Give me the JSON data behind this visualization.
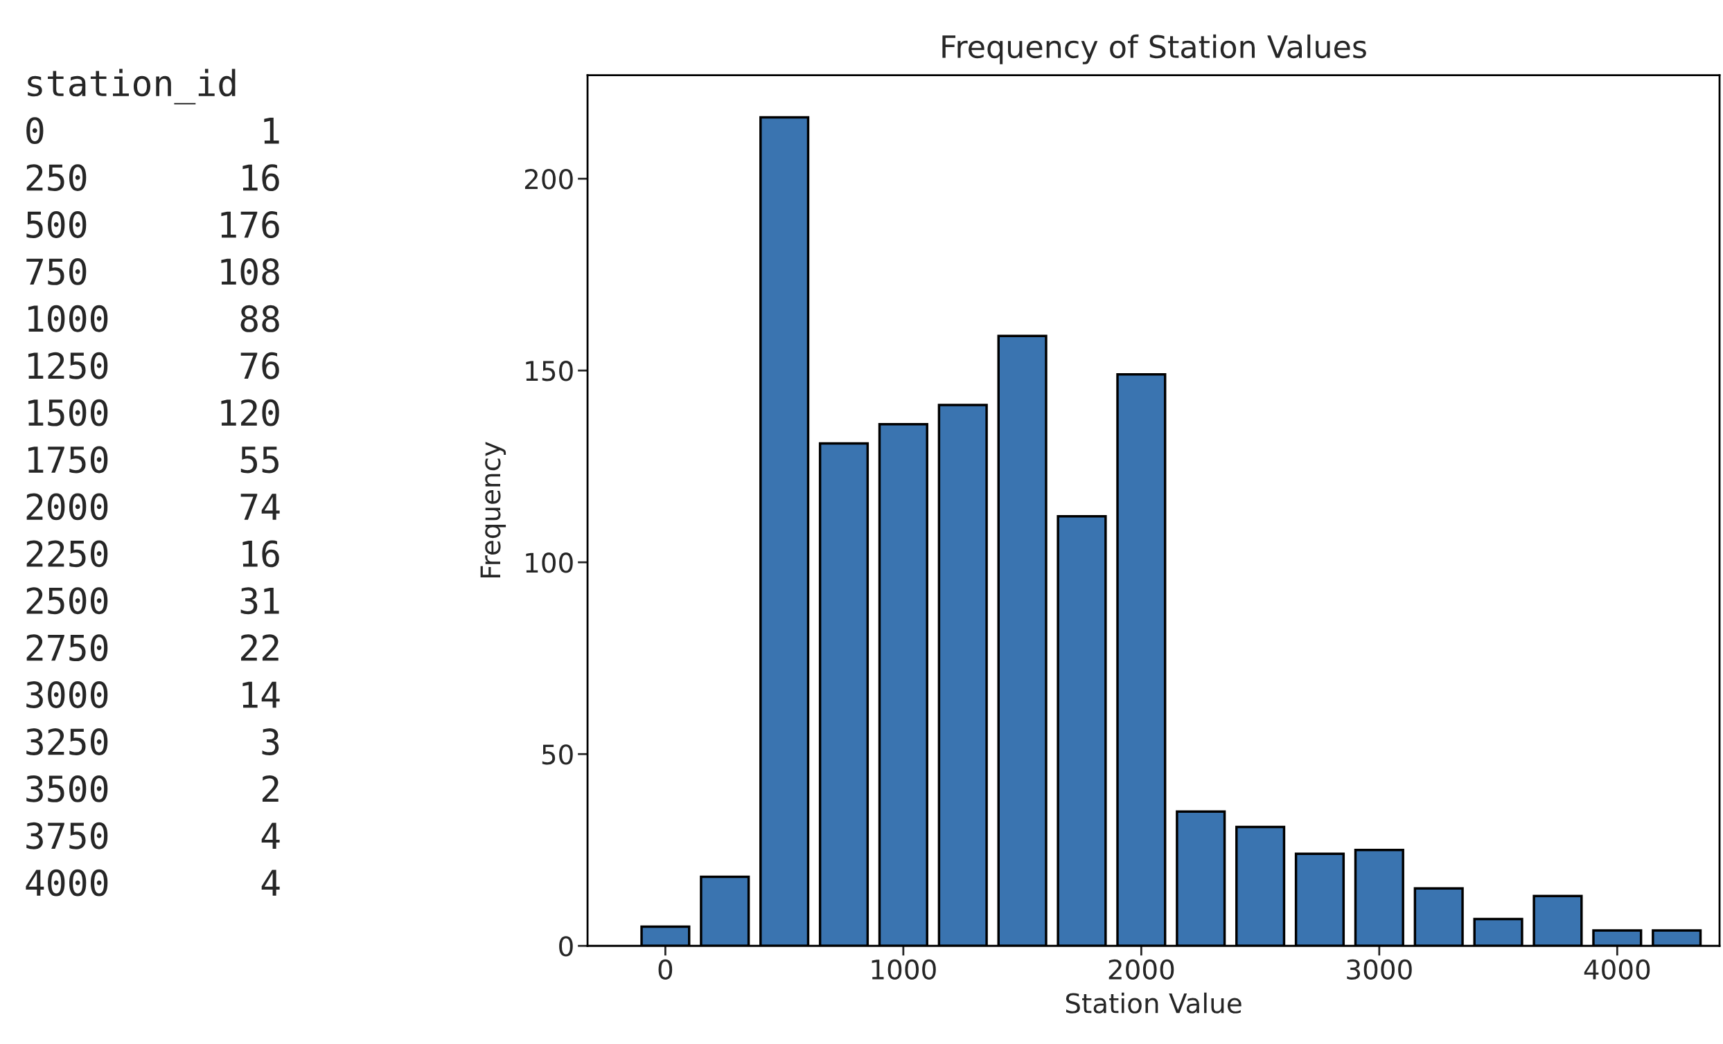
{
  "chart_data": {
    "type": "bar",
    "title": "Frequency of Station Values",
    "xlabel": "Station Value",
    "ylabel": "Frequency",
    "x": [
      0,
      250,
      500,
      750,
      1000,
      1250,
      1500,
      1750,
      2000,
      2250,
      2500,
      2750,
      3000,
      3250,
      3500,
      3750,
      4000,
      4250
    ],
    "values": [
      5,
      18,
      216,
      131,
      136,
      141,
      159,
      112,
      149,
      35,
      31,
      24,
      25,
      15,
      7,
      13,
      4,
      4
    ],
    "color": "#3a74b0",
    "xlim": [
      -327,
      4430
    ],
    "xticks": [
      0,
      1000,
      2000,
      3000,
      4000
    ],
    "ylim": [
      0,
      227
    ],
    "yticks": [
      0,
      50,
      100,
      150,
      200
    ],
    "grid": false,
    "annotations": [
      "station_id",
      "0          1",
      "250       16",
      "500      176",
      "750      108",
      "1000      88",
      "1250      76",
      "1500     120",
      "1750      55",
      "2000      74",
      "2250      16",
      "2500      31",
      "2750      22",
      "3000      14",
      "3250       3",
      "3500       2",
      "3750       4",
      "4000       4"
    ]
  }
}
